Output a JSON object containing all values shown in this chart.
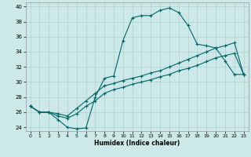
{
  "xlabel": "Humidex (Indice chaleur)",
  "bg_color": "#cde8e8",
  "grid_color": "#b0d0d0",
  "line_color": "#006666",
  "xlim": [
    -0.5,
    23.5
  ],
  "ylim": [
    23.5,
    40.5
  ],
  "x_ticks": [
    0,
    1,
    2,
    3,
    4,
    5,
    6,
    7,
    8,
    9,
    10,
    11,
    12,
    13,
    14,
    15,
    16,
    17,
    18,
    19,
    20,
    21,
    22,
    23
  ],
  "y_ticks": [
    24,
    26,
    28,
    30,
    32,
    34,
    36,
    38,
    40
  ],
  "line1_y": [
    26.8,
    26.0,
    26.0,
    25.0,
    24.0,
    23.8,
    23.9,
    28.0,
    30.5,
    30.8,
    35.5,
    38.5,
    38.8,
    38.8,
    39.5,
    39.8,
    39.2,
    37.5,
    35.0,
    34.8,
    34.5,
    32.8,
    31.0,
    31.0
  ],
  "line2_y": [
    26.8,
    26.0,
    26.0,
    25.8,
    25.5,
    26.5,
    27.5,
    28.5,
    29.5,
    29.8,
    30.2,
    30.5,
    30.8,
    31.2,
    31.5,
    32.0,
    32.5,
    33.0,
    33.5,
    34.0,
    34.5,
    34.8,
    35.2,
    31.0
  ],
  "line3_y": [
    26.8,
    26.0,
    26.0,
    25.5,
    25.2,
    25.8,
    26.8,
    27.5,
    28.5,
    29.0,
    29.3,
    29.7,
    30.0,
    30.3,
    30.7,
    31.0,
    31.5,
    31.8,
    32.2,
    32.7,
    33.2,
    33.5,
    33.8,
    31.0
  ]
}
